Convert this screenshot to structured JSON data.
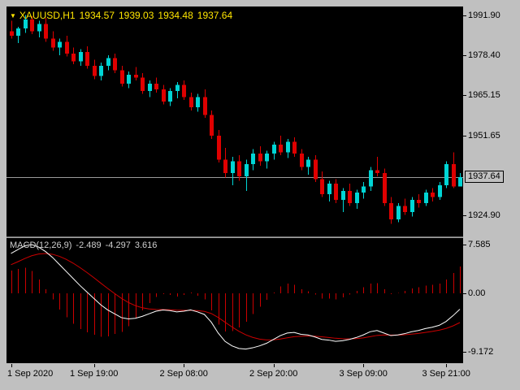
{
  "title": {
    "symbol": "XAUUSD,H1",
    "open": "1934.57",
    "high": "1939.03",
    "low": "1934.48",
    "close": "1937.64"
  },
  "icons": {
    "symbol_dropdown": "▼"
  },
  "indicator": {
    "name": "MACD(12,26,9)",
    "values": [
      "-2.489",
      "-4.297",
      "3.616"
    ]
  },
  "chart_data": {
    "type": "candlestick",
    "symbol": "XAUUSD",
    "timeframe": "H1",
    "main": {
      "y_ticks": [
        "1991.90",
        "1978.40",
        "1965.15",
        "1951.65",
        "1924.90"
      ],
      "current_price": "1937.64",
      "range": {
        "top": 1994.8,
        "bottom": 1917.8
      },
      "candles": [
        [
          1986.5,
          1990.0,
          1984.0,
          1985.0
        ],
        [
          1985.0,
          1988.0,
          1982.5,
          1987.5
        ],
        [
          1987.5,
          1991.9,
          1986.0,
          1990.5
        ],
        [
          1990.5,
          1991.5,
          1985.5,
          1986.5
        ],
        [
          1986.5,
          1990.0,
          1984.5,
          1989.0
        ],
        [
          1989.0,
          1991.0,
          1983.0,
          1984.0
        ],
        [
          1984.0,
          1986.5,
          1980.0,
          1981.0
        ],
        [
          1981.0,
          1984.0,
          1978.5,
          1983.0
        ],
        [
          1983.0,
          1985.0,
          1978.0,
          1979.0
        ],
        [
          1979.0,
          1981.0,
          1975.5,
          1976.5
        ],
        [
          1976.5,
          1980.5,
          1975.0,
          1979.5
        ],
        [
          1979.5,
          1981.5,
          1974.0,
          1975.0
        ],
        [
          1975.0,
          1977.0,
          1970.5,
          1971.5
        ],
        [
          1971.5,
          1976.0,
          1970.0,
          1975.0
        ],
        [
          1975.0,
          1978.5,
          1973.5,
          1977.5
        ],
        [
          1977.5,
          1979.0,
          1972.5,
          1973.5
        ],
        [
          1973.5,
          1975.0,
          1968.0,
          1969.0
        ],
        [
          1969.0,
          1973.0,
          1967.5,
          1972.0
        ],
        [
          1972.0,
          1974.5,
          1970.0,
          1971.0
        ],
        [
          1971.0,
          1972.5,
          1965.5,
          1966.5
        ],
        [
          1966.5,
          1970.0,
          1964.5,
          1969.0
        ],
        [
          1969.0,
          1971.0,
          1966.0,
          1967.0
        ],
        [
          1967.0,
          1968.5,
          1962.0,
          1963.0
        ],
        [
          1963.0,
          1967.5,
          1961.5,
          1966.5
        ],
        [
          1966.5,
          1969.5,
          1964.0,
          1968.5
        ],
        [
          1968.5,
          1970.0,
          1963.5,
          1964.5
        ],
        [
          1964.5,
          1966.0,
          1960.0,
          1961.0
        ],
        [
          1961.0,
          1965.5,
          1959.5,
          1964.5
        ],
        [
          1964.5,
          1967.0,
          1957.5,
          1958.5
        ],
        [
          1958.5,
          1960.0,
          1950.5,
          1951.5
        ],
        [
          1951.5,
          1953.5,
          1942.5,
          1943.5
        ],
        [
          1943.5,
          1947.5,
          1937.5,
          1939.0
        ],
        [
          1939.0,
          1944.5,
          1935.0,
          1943.0
        ],
        [
          1943.0,
          1945.0,
          1936.5,
          1938.0
        ],
        [
          1938.0,
          1943.5,
          1933.0,
          1942.0
        ],
        [
          1942.0,
          1947.0,
          1940.0,
          1945.5
        ],
        [
          1945.5,
          1948.0,
          1941.5,
          1943.0
        ],
        [
          1943.0,
          1946.5,
          1940.5,
          1945.5
        ],
        [
          1945.5,
          1949.5,
          1943.5,
          1948.5
        ],
        [
          1948.5,
          1951.5,
          1945.0,
          1946.0
        ],
        [
          1946.0,
          1950.5,
          1944.0,
          1949.5
        ],
        [
          1949.5,
          1951.0,
          1944.5,
          1945.5
        ],
        [
          1945.5,
          1947.0,
          1940.0,
          1941.0
        ],
        [
          1941.0,
          1944.5,
          1938.5,
          1943.5
        ],
        [
          1943.5,
          1945.0,
          1936.0,
          1937.0
        ],
        [
          1937.0,
          1939.5,
          1931.0,
          1932.0
        ],
        [
          1932.0,
          1936.5,
          1929.5,
          1935.5
        ],
        [
          1935.5,
          1937.0,
          1929.0,
          1930.0
        ],
        [
          1930.0,
          1934.0,
          1926.0,
          1933.0
        ],
        [
          1933.0,
          1935.5,
          1928.0,
          1929.0
        ],
        [
          1929.0,
          1933.5,
          1927.0,
          1932.5
        ],
        [
          1932.5,
          1936.0,
          1930.5,
          1934.5
        ],
        [
          1934.5,
          1941.0,
          1933.0,
          1940.0
        ],
        [
          1940.0,
          1944.5,
          1938.0,
          1939.0
        ],
        [
          1939.0,
          1940.5,
          1928.0,
          1929.0
        ],
        [
          1929.0,
          1931.0,
          1922.0,
          1923.5
        ],
        [
          1923.5,
          1929.0,
          1922.5,
          1928.0
        ],
        [
          1928.0,
          1930.5,
          1925.0,
          1926.0
        ],
        [
          1926.0,
          1931.0,
          1924.5,
          1930.0
        ],
        [
          1930.0,
          1932.0,
          1927.5,
          1929.0
        ],
        [
          1929.0,
          1933.5,
          1928.0,
          1932.5
        ],
        [
          1932.5,
          1934.0,
          1929.5,
          1931.0
        ],
        [
          1931.0,
          1936.0,
          1930.0,
          1935.0
        ],
        [
          1935.0,
          1943.0,
          1934.0,
          1942.0
        ],
        [
          1942.0,
          1946.0,
          1934.0,
          1934.6
        ],
        [
          1934.57,
          1939.03,
          1934.48,
          1937.64
        ]
      ]
    },
    "macd": {
      "y_ticks": [
        "7.585",
        "0.00",
        "-9.172"
      ],
      "range": {
        "top": 8.6,
        "bottom": -10.9
      },
      "macd_line": [
        6.2,
        6.8,
        7.4,
        7.58,
        7.2,
        6.5,
        5.6,
        4.5,
        3.4,
        2.3,
        1.2,
        0.2,
        -0.8,
        -1.8,
        -2.6,
        -3.2,
        -3.8,
        -4.0,
        -3.9,
        -3.6,
        -3.2,
        -2.8,
        -2.6,
        -2.7,
        -2.9,
        -2.8,
        -2.6,
        -2.9,
        -3.3,
        -4.5,
        -6.2,
        -7.5,
        -8.2,
        -8.6,
        -8.7,
        -8.5,
        -8.2,
        -7.8,
        -7.2,
        -6.6,
        -6.2,
        -6.1,
        -6.4,
        -6.5,
        -6.8,
        -7.2,
        -7.3,
        -7.5,
        -7.4,
        -7.2,
        -6.9,
        -6.5,
        -6.0,
        -5.8,
        -6.2,
        -6.6,
        -6.5,
        -6.3,
        -6.0,
        -5.8,
        -5.5,
        -5.3,
        -5.0,
        -4.4,
        -3.5,
        -2.489
      ],
      "signal_start": 4.0,
      "signal_ema_k": 0.2,
      "histogram_factor": 2
    },
    "x_ticks": [
      {
        "label": "1 Sep 2020",
        "index": 0
      },
      {
        "label": "1 Sep 19:00",
        "index": 12
      },
      {
        "label": "2 Sep 08:00",
        "index": 25
      },
      {
        "label": "2 Sep 20:00",
        "index": 38
      },
      {
        "label": "3 Sep 09:00",
        "index": 51
      },
      {
        "label": "3 Sep 21:00",
        "index": 63
      }
    ],
    "colors": {
      "up": "#00d5d5",
      "down": "#df0000",
      "macd_line": "#ffffff",
      "signal_line": "#cc0000",
      "histogram": "#cc0000",
      "background": "#000000",
      "frame": "#c0c0c0",
      "axis_text": "#000000",
      "price_line": "#9a9a9a",
      "title_text": "#ffe600",
      "indicator_text": "#cfcfcf"
    }
  }
}
